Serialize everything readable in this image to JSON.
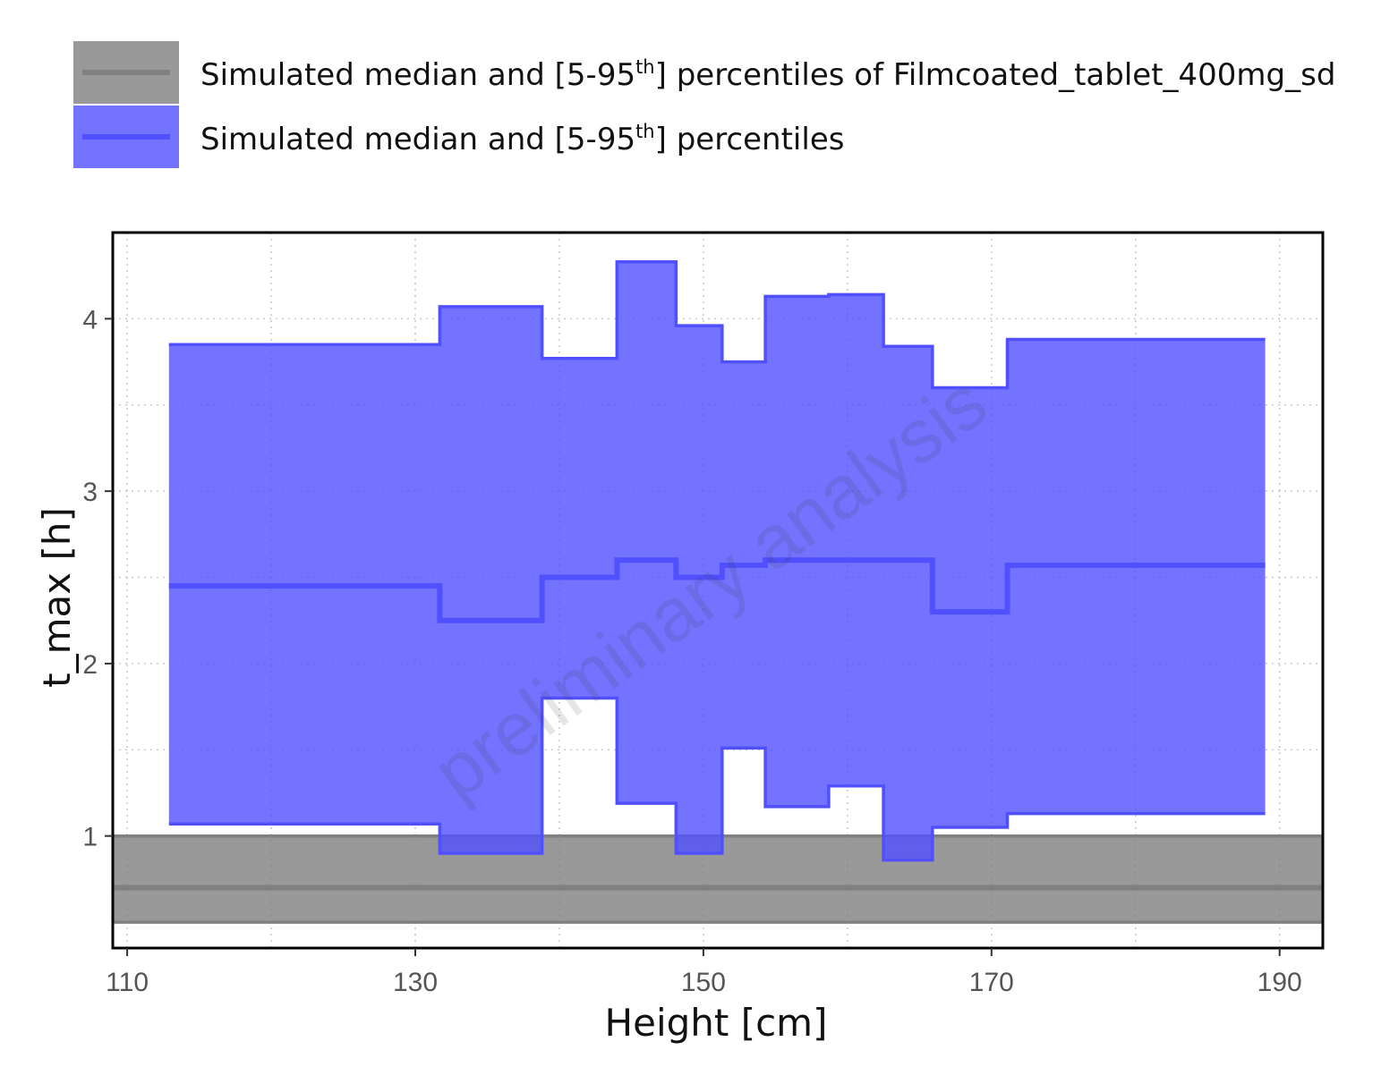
{
  "legend": {
    "items": [
      {
        "prefix": "Simulated median and [5-95",
        "sup": "th",
        "suffix": "] percentiles of Filmcoated_tablet_400mg_sd",
        "color": "#808080"
      },
      {
        "prefix": "Simulated median and [5-95",
        "sup": "th",
        "suffix": "] percentiles",
        "color": "#5050FF"
      }
    ]
  },
  "watermark": "preliminary analysis",
  "chart_data": {
    "type": "area",
    "xlabel": "Height [cm]",
    "ylabel": "t_max [h]",
    "xlim": [
      109,
      193
    ],
    "ylim": [
      0.35,
      4.5
    ],
    "xticks": [
      110,
      130,
      150,
      170,
      190
    ],
    "yticks": [
      1,
      2,
      3,
      4
    ],
    "grid": true,
    "legend_position": "top",
    "reference_series": {
      "name": "Simulated median and [5-95th] percentiles of Filmcoated_tablet_400mg_sd",
      "color": "#808080",
      "x_range": [
        109,
        193
      ],
      "median": 0.7,
      "p5": 0.5,
      "p95": 1.0
    },
    "series": {
      "name": "Simulated median and [5-95th] percentiles",
      "color": "#5050FF",
      "bins": [
        {
          "x_start": 112.9,
          "x_end": 131.7,
          "median": 2.45,
          "p5": 1.07,
          "p95": 3.85
        },
        {
          "x_start": 131.7,
          "x_end": 138.8,
          "median": 2.25,
          "p5": 0.9,
          "p95": 4.07
        },
        {
          "x_start": 138.8,
          "x_end": 144.0,
          "median": 2.5,
          "p5": 1.8,
          "p95": 3.77
        },
        {
          "x_start": 144.0,
          "x_end": 148.1,
          "median": 2.6,
          "p5": 1.19,
          "p95": 4.33
        },
        {
          "x_start": 148.1,
          "x_end": 151.3,
          "median": 2.5,
          "p5": 0.9,
          "p95": 3.96
        },
        {
          "x_start": 151.3,
          "x_end": 154.3,
          "median": 2.57,
          "p5": 1.51,
          "p95": 3.75
        },
        {
          "x_start": 154.3,
          "x_end": 158.7,
          "median": 2.6,
          "p5": 1.17,
          "p95": 4.13
        },
        {
          "x_start": 158.7,
          "x_end": 162.5,
          "median": 2.6,
          "p5": 1.29,
          "p95": 4.14
        },
        {
          "x_start": 162.5,
          "x_end": 165.9,
          "median": 2.6,
          "p5": 0.86,
          "p95": 3.84
        },
        {
          "x_start": 165.9,
          "x_end": 171.1,
          "median": 2.3,
          "p5": 1.05,
          "p95": 3.6
        },
        {
          "x_start": 171.1,
          "x_end": 189.0,
          "median": 2.57,
          "p5": 1.13,
          "p95": 3.88
        }
      ]
    }
  }
}
